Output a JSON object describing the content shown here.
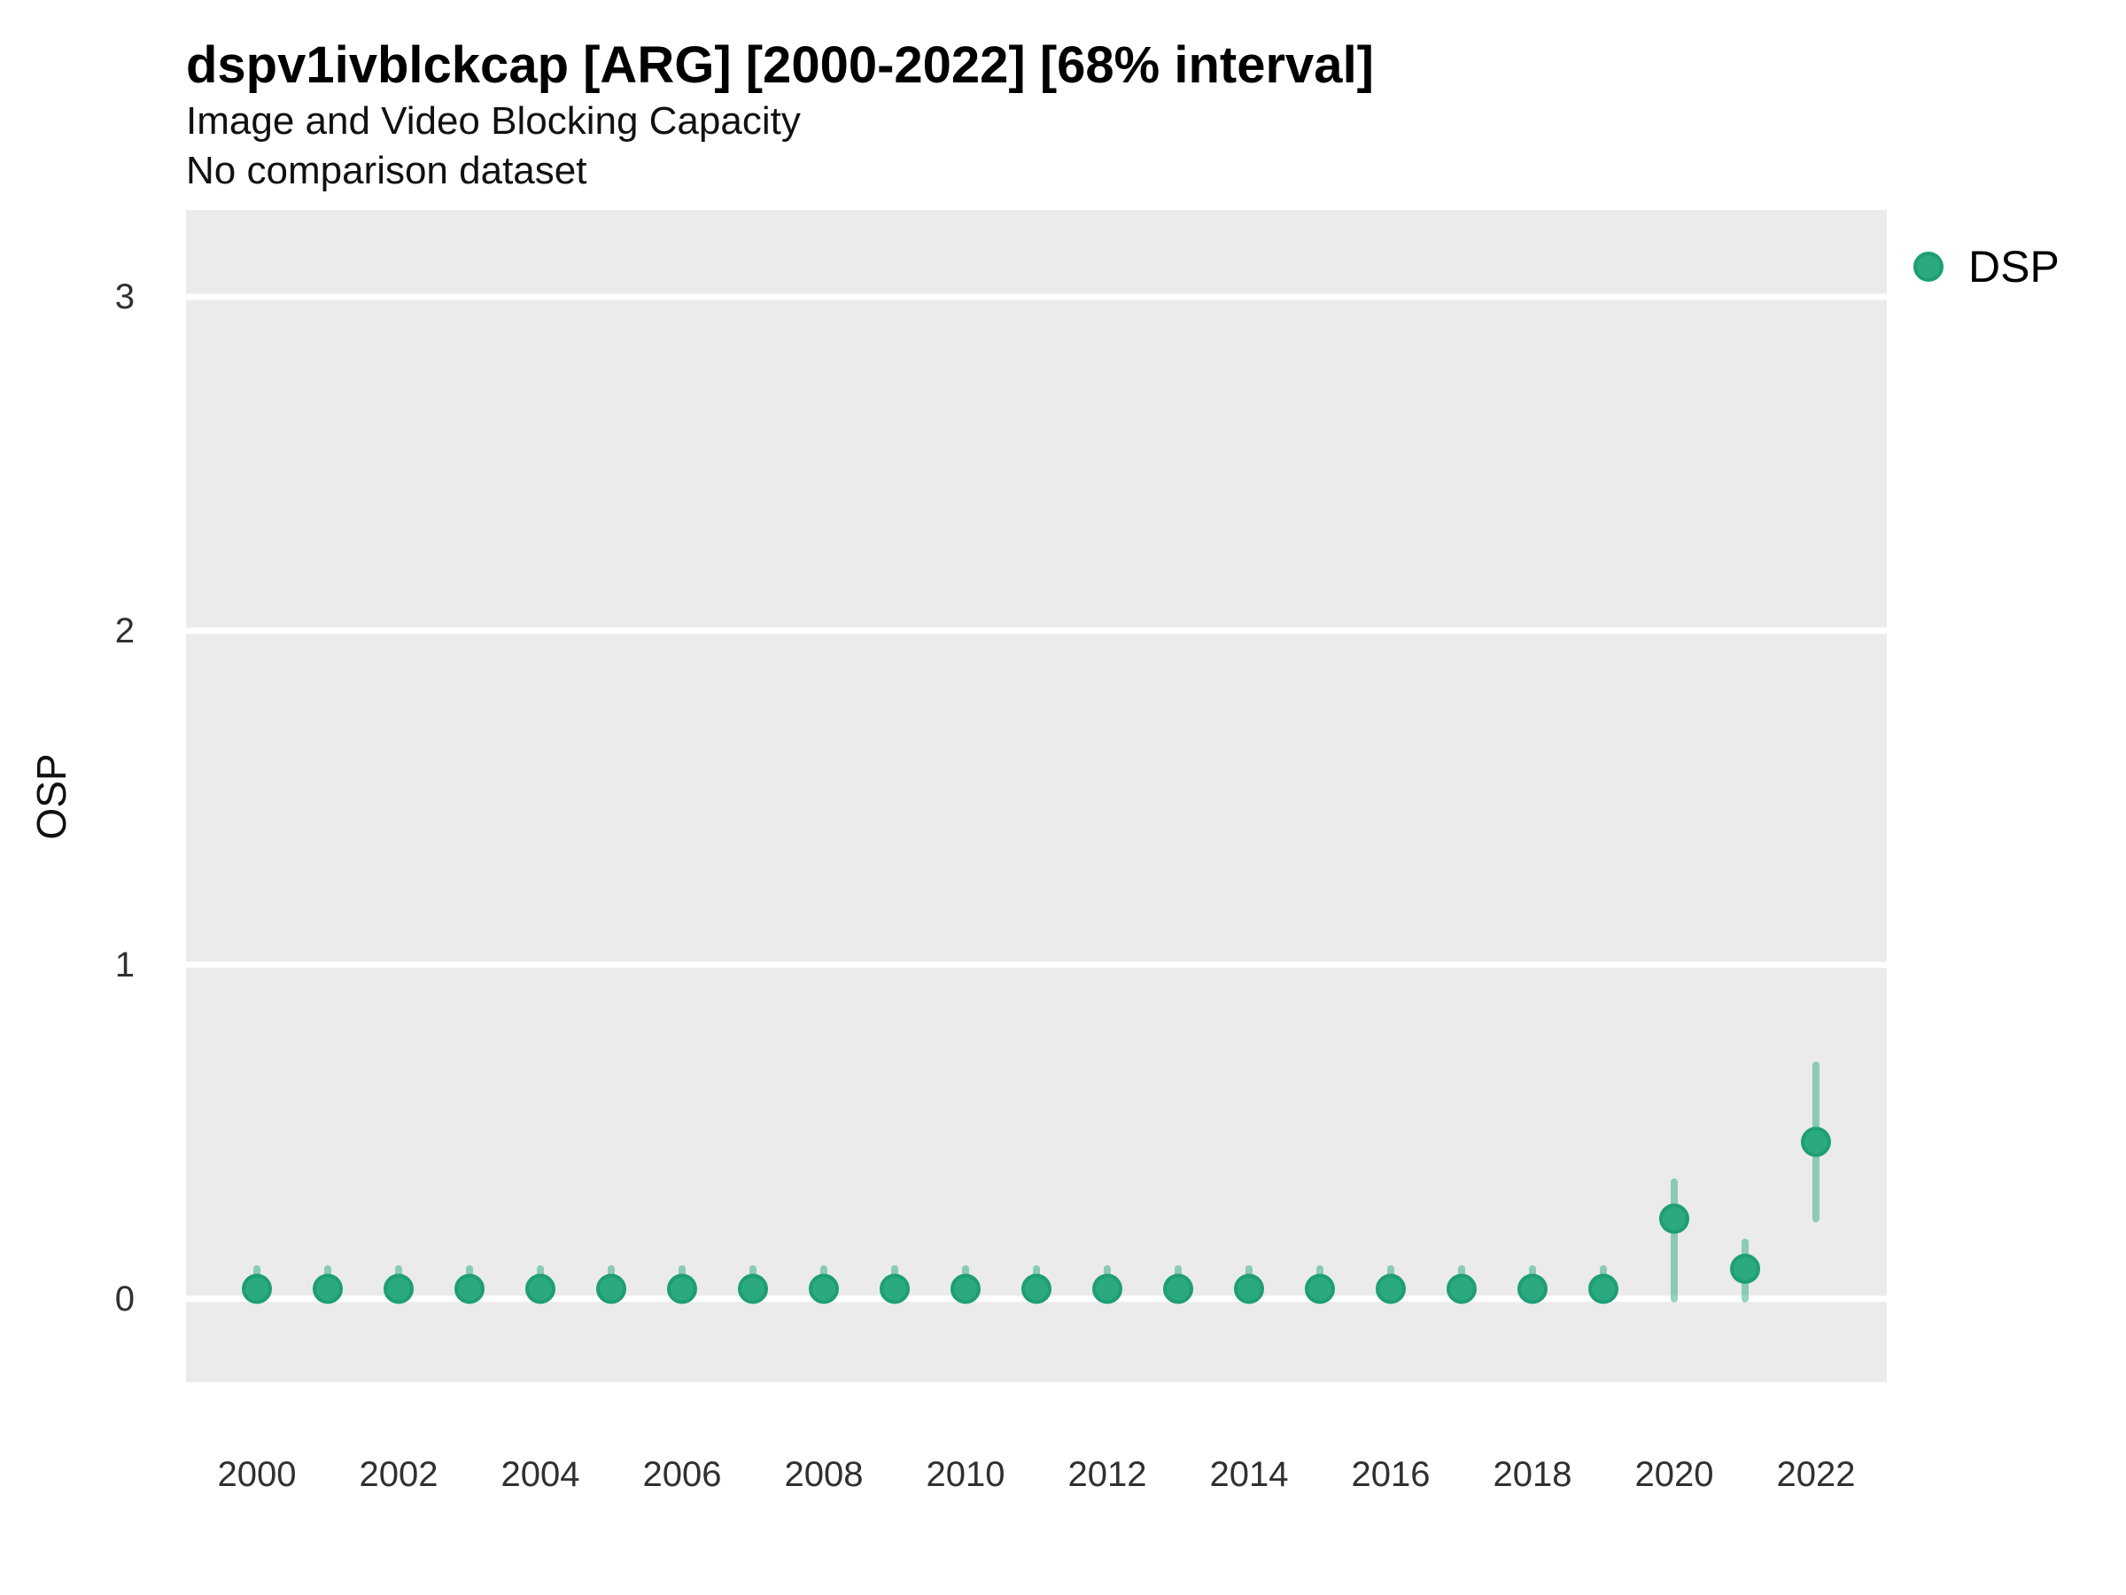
{
  "header": {
    "title": "dspv1ivblckcap [ARG] [2000-2022] [68% interval]",
    "subtitle1": "Image and Video Blocking Capacity",
    "subtitle2": "No comparison dataset"
  },
  "colors": {
    "panel_bg": "#EBEBEB",
    "grid": "#FFFFFF",
    "point_fill": "#2BAA81",
    "point_stroke": "#1E9E74",
    "interval": "rgba(43,170,129,0.5)",
    "tick_text": "#303030"
  },
  "chart_data": {
    "type": "scatter",
    "title": "dspv1ivblckcap [ARG] [2000-2022] [68% interval]",
    "subtitle": "Image and Video Blocking Capacity",
    "note": "No comparison dataset",
    "xlabel": "",
    "ylabel": "OSP",
    "xlim": [
      1999,
      2023
    ],
    "ylim": [
      -0.25,
      3.26
    ],
    "yticks": [
      0,
      1,
      2,
      3
    ],
    "xticks": [
      2000,
      2002,
      2004,
      2006,
      2008,
      2010,
      2012,
      2014,
      2016,
      2018,
      2020,
      2022
    ],
    "grid": "horizontal-major-only",
    "legend_position": "right-top",
    "series": [
      {
        "name": "DSP",
        "interval": "68%",
        "points": [
          {
            "x": 2000,
            "y": 0.03,
            "lo": 0.0,
            "hi": 0.09
          },
          {
            "x": 2001,
            "y": 0.03,
            "lo": 0.0,
            "hi": 0.09
          },
          {
            "x": 2002,
            "y": 0.03,
            "lo": 0.0,
            "hi": 0.09
          },
          {
            "x": 2003,
            "y": 0.03,
            "lo": 0.0,
            "hi": 0.09
          },
          {
            "x": 2004,
            "y": 0.03,
            "lo": 0.0,
            "hi": 0.09
          },
          {
            "x": 2005,
            "y": 0.03,
            "lo": 0.0,
            "hi": 0.09
          },
          {
            "x": 2006,
            "y": 0.03,
            "lo": 0.0,
            "hi": 0.09
          },
          {
            "x": 2007,
            "y": 0.03,
            "lo": 0.0,
            "hi": 0.09
          },
          {
            "x": 2008,
            "y": 0.03,
            "lo": 0.0,
            "hi": 0.09
          },
          {
            "x": 2009,
            "y": 0.03,
            "lo": 0.0,
            "hi": 0.09
          },
          {
            "x": 2010,
            "y": 0.03,
            "lo": 0.0,
            "hi": 0.09
          },
          {
            "x": 2011,
            "y": 0.03,
            "lo": 0.0,
            "hi": 0.09
          },
          {
            "x": 2012,
            "y": 0.03,
            "lo": 0.0,
            "hi": 0.09
          },
          {
            "x": 2013,
            "y": 0.03,
            "lo": 0.0,
            "hi": 0.09
          },
          {
            "x": 2014,
            "y": 0.03,
            "lo": 0.0,
            "hi": 0.09
          },
          {
            "x": 2015,
            "y": 0.03,
            "lo": 0.0,
            "hi": 0.09
          },
          {
            "x": 2016,
            "y": 0.03,
            "lo": 0.0,
            "hi": 0.09
          },
          {
            "x": 2017,
            "y": 0.03,
            "lo": 0.0,
            "hi": 0.09
          },
          {
            "x": 2018,
            "y": 0.03,
            "lo": 0.0,
            "hi": 0.09
          },
          {
            "x": 2019,
            "y": 0.03,
            "lo": 0.0,
            "hi": 0.09
          },
          {
            "x": 2020,
            "y": 0.24,
            "lo": 0.0,
            "hi": 0.35
          },
          {
            "x": 2021,
            "y": 0.09,
            "lo": 0.0,
            "hi": 0.17
          },
          {
            "x": 2022,
            "y": 0.47,
            "lo": 0.24,
            "hi": 0.7
          }
        ]
      }
    ]
  }
}
